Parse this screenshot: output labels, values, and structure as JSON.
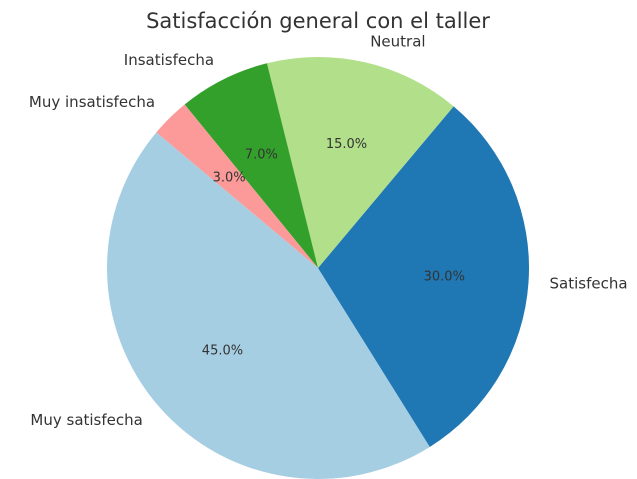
{
  "chart_data": {
    "type": "pie",
    "title": "Satisfacción general con el taller",
    "categories": [
      "Muy satisfecha",
      "Satisfecha",
      "Neutral",
      "Insatisfecha",
      "Muy insatisfecha"
    ],
    "values": [
      45,
      30,
      15,
      7,
      3
    ],
    "value_labels": [
      "45.0%",
      "30.0%",
      "15.0%",
      "7.0%",
      "3.0%"
    ],
    "colors": [
      "#a6cee3",
      "#1f78b4",
      "#b2df8a",
      "#33a02c",
      "#fb9a99"
    ]
  }
}
